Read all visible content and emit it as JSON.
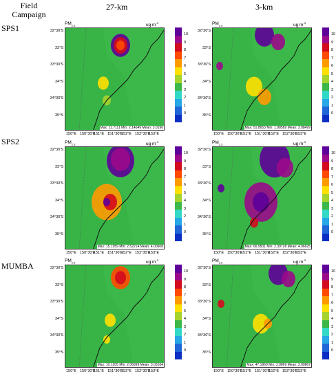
{
  "header": {
    "row_label": "Field Campaign",
    "col1": "27-km",
    "col2": "3-km"
  },
  "campaigns": [
    "SPS1",
    "SPS2",
    "MUMBA"
  ],
  "map": {
    "variable": "PM",
    "variable_sub": "2.5",
    "unit": "ug m",
    "unit_sup": "-3",
    "lat_labels": [
      "32°30'S",
      "33°S",
      "33°30'S",
      "34°S",
      "34°30'S",
      "35°S"
    ],
    "lon_labels": [
      "150°E",
      "150°30'E",
      "151°E",
      "151°30'E",
      "152°E",
      "152°30'E",
      "153°E"
    ],
    "colorbar_ticks": [
      "10",
      "9",
      "8",
      "7",
      "6",
      "5",
      "4",
      "3",
      "2",
      "1",
      "0"
    ],
    "colorbar_colors": [
      "#5e0099",
      "#9a0a8a",
      "#d40a1e",
      "#ff4a00",
      "#ff9a00",
      "#ffe000",
      "#a6d32c",
      "#3cb84a",
      "#33d9c7",
      "#26a7e6",
      "#1f66d6",
      "#0b2fc2"
    ]
  },
  "panels": [
    {
      "row": 0,
      "col": 0,
      "stats": "Max: 11.7111  Min: 2.14049  Mean: 3.0196"
    },
    {
      "row": 0,
      "col": 1,
      "stats": "Max: 51.8653  Min: 1.98589  Mean: 3.08499"
    },
    {
      "row": 1,
      "col": 0,
      "stats": "Max: 15.1959  Min: 2.52214  Mean: 4.00608"
    },
    {
      "row": 1,
      "col": 1,
      "stats": "Max: 66.9501  Min: 2.39728  Mean: 4.06625"
    },
    {
      "row": 2,
      "col": 0,
      "stats": "Max: 10.1205  Min: 2.06999  Mean: 3.03164"
    },
    {
      "row": 2,
      "col": 1,
      "stats": "Max: 47.1969  Min: 2.0869  Mean: 3.09867"
    }
  ]
}
